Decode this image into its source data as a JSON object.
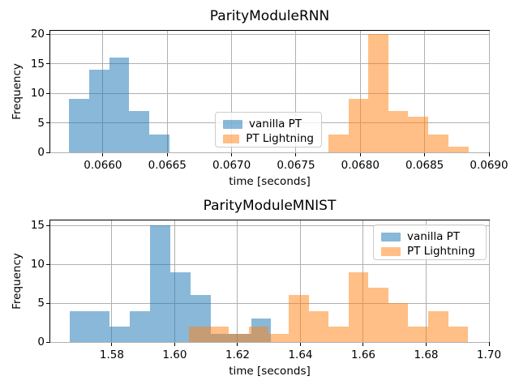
{
  "figure": {
    "background": "#ffffff",
    "grid_color": "#b0b0b0",
    "spine_color": "#000000",
    "series_colors": {
      "vanilla_pt_base": "#1f77b4",
      "pt_lightning_base": "#ff7f0e"
    },
    "series_alpha": {
      "vanilla_pt": 0.52,
      "pt_lightning": 0.5
    }
  },
  "chart_data": [
    {
      "type": "bar",
      "subtype": "histogram",
      "title": "ParityModuleRNN",
      "xlabel": "time [seconds]",
      "ylabel": "Frequency",
      "xlim": [
        0.065591,
        0.069
      ],
      "ylim": [
        0,
        20.55
      ],
      "grid": true,
      "legend_position": "center",
      "xticks": [
        {
          "v": 0.066,
          "label": "0.0660"
        },
        {
          "v": 0.0665,
          "label": "0.0665"
        },
        {
          "v": 0.067,
          "label": "0.0670"
        },
        {
          "v": 0.0675,
          "label": "0.0675"
        },
        {
          "v": 0.068,
          "label": "0.0680"
        },
        {
          "v": 0.0685,
          "label": "0.0685"
        },
        {
          "v": 0.069,
          "label": "0.0690"
        }
      ],
      "yticks": [
        {
          "v": 0,
          "label": "0"
        },
        {
          "v": 5,
          "label": "5"
        },
        {
          "v": 10,
          "label": "10"
        },
        {
          "v": 15,
          "label": "15"
        },
        {
          "v": 20,
          "label": "20"
        }
      ],
      "series": [
        {
          "name": "vanilla PT",
          "color": "rgba(31,119,180,0.52)",
          "bin_edges": [
            0.065736,
            0.065892,
            0.066048,
            0.066204,
            0.06636,
            0.066516
          ],
          "counts": [
            9,
            14,
            16,
            7,
            3
          ]
        },
        {
          "name": "PT Lightning",
          "color": "rgba(255,127,14,0.5)",
          "bin_edges": [
            0.067751,
            0.067907,
            0.068062,
            0.068218,
            0.068373,
            0.068529,
            0.068684,
            0.06884
          ],
          "counts": [
            3,
            9,
            20,
            7,
            6,
            3,
            1
          ]
        }
      ]
    },
    {
      "type": "bar",
      "subtype": "histogram",
      "title": "ParityModuleMNIST",
      "xlabel": "time [seconds]",
      "ylabel": "Frequency",
      "xlim": [
        1.5604,
        1.7
      ],
      "ylim": [
        0,
        15.63
      ],
      "grid": true,
      "legend_position": "upper right",
      "xticks": [
        {
          "v": 1.58,
          "label": "1.58"
        },
        {
          "v": 1.6,
          "label": "1.60"
        },
        {
          "v": 1.62,
          "label": "1.62"
        },
        {
          "v": 1.64,
          "label": "1.64"
        },
        {
          "v": 1.66,
          "label": "1.66"
        },
        {
          "v": 1.68,
          "label": "1.68"
        },
        {
          "v": 1.7,
          "label": "1.70"
        }
      ],
      "yticks": [
        {
          "v": 0,
          "label": "0"
        },
        {
          "v": 5,
          "label": "5"
        },
        {
          "v": 10,
          "label": "10"
        },
        {
          "v": 15,
          "label": "15"
        }
      ],
      "series": [
        {
          "name": "vanilla PT",
          "color": "rgba(31,119,180,0.52)",
          "bin_edges": [
            1.5665,
            1.5729,
            1.5793,
            1.5858,
            1.5922,
            1.5986,
            1.605,
            1.6115,
            1.6179,
            1.6243,
            1.6307
          ],
          "counts": [
            4,
            4,
            2,
            4,
            15,
            9,
            6,
            1,
            1,
            3
          ]
        },
        {
          "name": "PT Lightning",
          "color": "rgba(255,127,14,0.5)",
          "bin_edges": [
            1.6045,
            1.6108,
            1.6172,
            1.6235,
            1.6299,
            1.6362,
            1.6426,
            1.6489,
            1.6553,
            1.6616,
            1.668,
            1.6743,
            1.6807,
            1.687,
            1.6933
          ],
          "counts": [
            2,
            2,
            1,
            2,
            1,
            6,
            4,
            2,
            9,
            7,
            5,
            2,
            4,
            2
          ]
        }
      ]
    }
  ]
}
